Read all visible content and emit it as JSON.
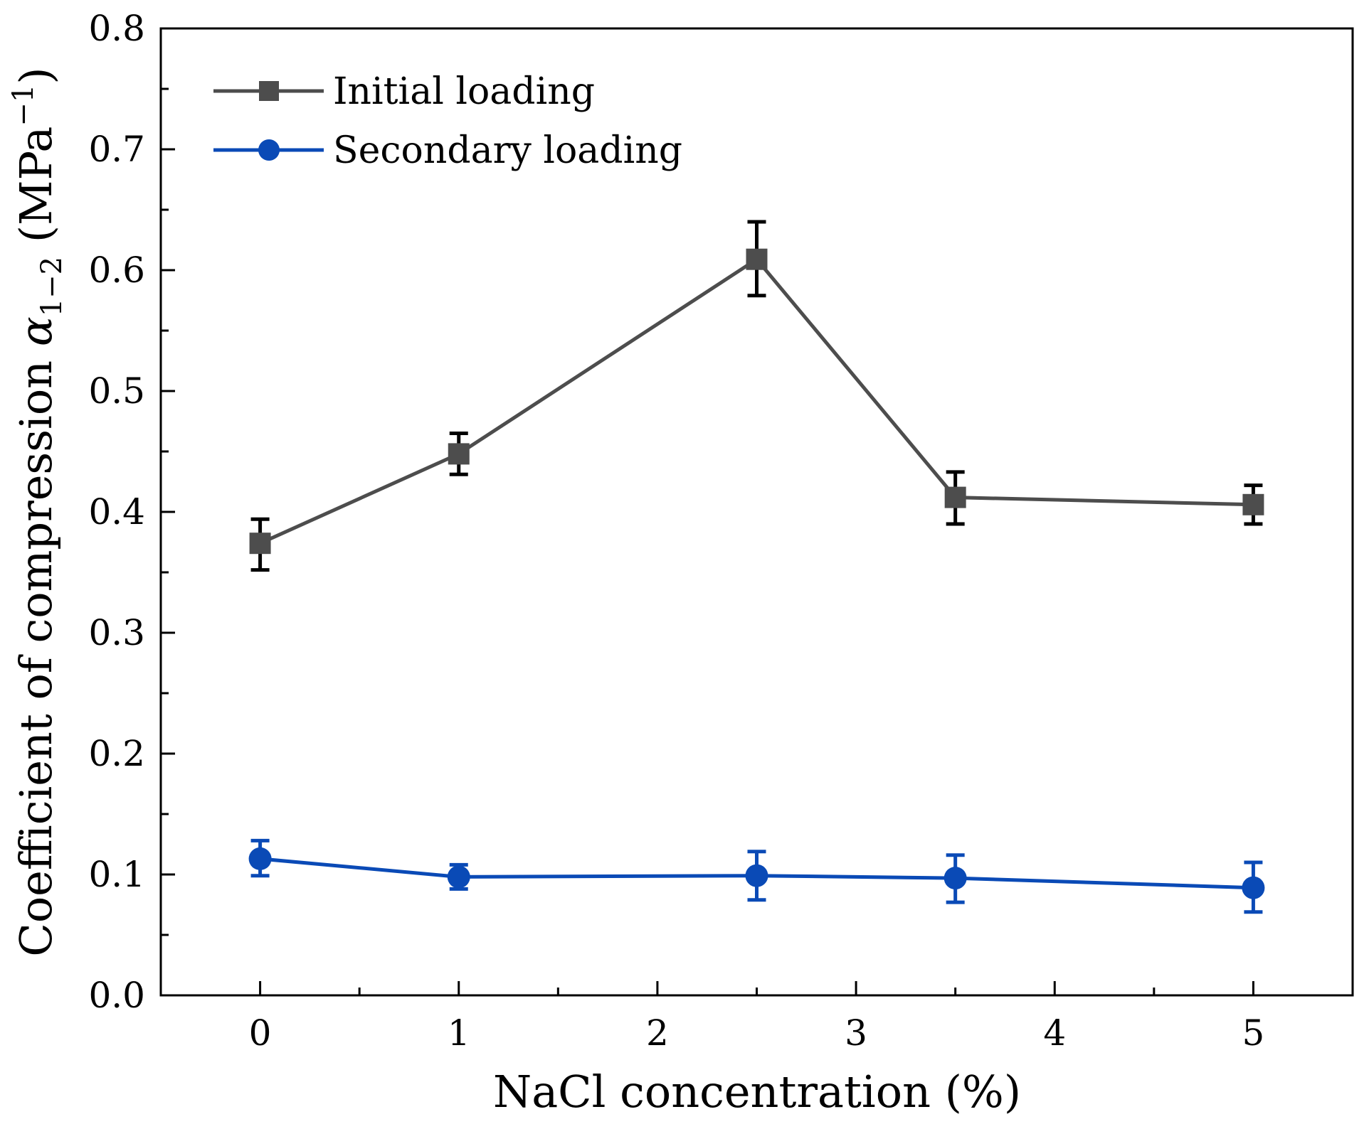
{
  "chart_data": {
    "type": "line",
    "xlabel": "NaCl concentration (%)",
    "ylabel_parts": [
      "Coefficient of compression ",
      "α",
      "1−2",
      " (MPa",
      "−1",
      ")"
    ],
    "xlim": [
      -0.5,
      5.5
    ],
    "ylim": [
      0.0,
      0.8
    ],
    "x_ticks": [
      0,
      1,
      2,
      3,
      4,
      5
    ],
    "x_tick_labels": [
      "0",
      "1",
      "2",
      "3",
      "4",
      "5"
    ],
    "y_ticks": [
      0.0,
      0.1,
      0.2,
      0.3,
      0.4,
      0.5,
      0.6,
      0.7,
      0.8
    ],
    "y_tick_labels": [
      "0.0",
      "0.1",
      "0.2",
      "0.3",
      "0.4",
      "0.5",
      "0.6",
      "0.7",
      "0.8"
    ],
    "grid": false,
    "legend_position": "top-left",
    "series": [
      {
        "name": "Initial loading",
        "marker": "square",
        "color": "#4d4d4d",
        "error_color": "#000000",
        "x": [
          0,
          1,
          2.5,
          3.5,
          5
        ],
        "y": [
          0.374,
          0.448,
          0.609,
          0.412,
          0.406
        ],
        "error_low": [
          0.352,
          0.431,
          0.579,
          0.39,
          0.39
        ],
        "error_high": [
          0.394,
          0.465,
          0.64,
          0.433,
          0.422
        ]
      },
      {
        "name": "Secondary loading",
        "marker": "circle",
        "color": "#0a4ab6",
        "error_color": "#0a4ab6",
        "x": [
          0,
          1,
          2.5,
          3.5,
          5
        ],
        "y": [
          0.113,
          0.098,
          0.099,
          0.097,
          0.089
        ],
        "error_low": [
          0.099,
          0.088,
          0.079,
          0.077,
          0.069
        ],
        "error_high": [
          0.128,
          0.108,
          0.119,
          0.116,
          0.11
        ]
      }
    ]
  }
}
